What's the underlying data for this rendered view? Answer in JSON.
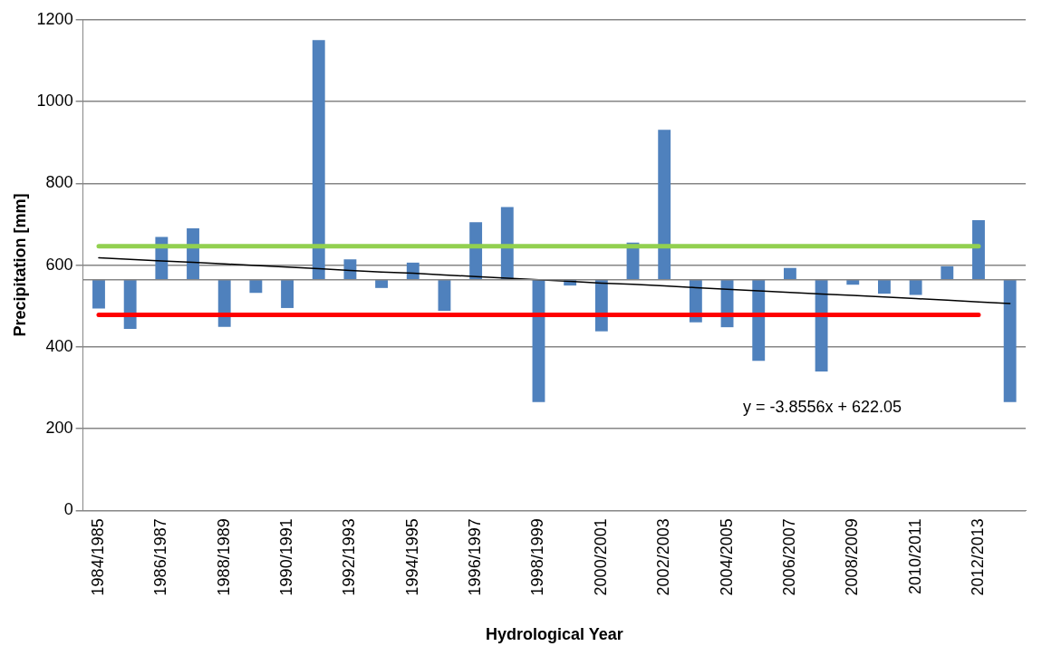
{
  "chart_data": {
    "type": "bar",
    "categories": [
      "1984/1985",
      null,
      "1986/1987",
      null,
      "1988/1989",
      null,
      "1990/1991",
      null,
      "1992/1993",
      null,
      "1994/1995",
      null,
      "1996/1997",
      null,
      "1998/1999",
      null,
      "2000/2001",
      null,
      "2002/2003",
      null,
      "2004/2005",
      null,
      "2006/2007",
      null,
      "2008/2009",
      null,
      "2010/2011",
      null,
      "2012/2013",
      null
    ],
    "xlabel": "Hydrological Year",
    "ylabel": "Precipitation [mm]",
    "ylim": [
      0,
      1200
    ],
    "yticks": [
      0,
      200,
      400,
      600,
      800,
      1000,
      1200
    ],
    "grid": "y",
    "legend": false,
    "annotations": [
      "y = -3.8556x + 622.05"
    ],
    "ref_lines": [
      {
        "axis": "y",
        "value": 564,
        "color": "#868686"
      }
    ],
    "series": [
      {
        "color": "#4f81bd",
        "base": [
          564,
          564,
          564,
          564,
          564,
          564,
          564,
          564,
          564,
          564,
          564,
          564,
          564,
          564,
          564,
          564,
          564,
          564,
          564,
          564,
          564,
          564,
          564,
          564,
          564,
          564,
          564,
          564,
          564,
          564
        ],
        "values": [
          -70,
          -120,
          105,
          126,
          -115,
          -32,
          -69,
          586,
          50,
          -20,
          42,
          -76,
          141,
          178,
          -299,
          -14,
          -126,
          91,
          367,
          -104,
          -116,
          -198,
          29,
          -224,
          -12,
          -34,
          -37,
          33,
          146,
          -299
        ]
      },
      {
        "type": "line",
        "color": "#92d050",
        "values": [
          646,
          646,
          646,
          646,
          646,
          646,
          646,
          646,
          646,
          646,
          646,
          646,
          646,
          646,
          646,
          646,
          646,
          646,
          646,
          646,
          646,
          646,
          646,
          646,
          646,
          646,
          646,
          646,
          646,
          null
        ]
      },
      {
        "type": "line",
        "color": "#ff0000",
        "values": [
          478,
          478,
          478,
          478,
          478,
          478,
          478,
          478,
          478,
          478,
          478,
          478,
          478,
          478,
          478,
          478,
          478,
          478,
          478,
          478,
          478,
          478,
          478,
          478,
          478,
          478,
          478,
          478,
          478,
          null
        ]
      },
      {
        "type": "line",
        "color": "#000000",
        "values": [
          618,
          614,
          610,
          607,
          603,
          599,
          595,
          591,
          587,
          583,
          580,
          576,
          572,
          568,
          564,
          560,
          556,
          553,
          549,
          545,
          541,
          537,
          533,
          529,
          526,
          522,
          518,
          514,
          510,
          506
        ]
      }
    ]
  }
}
